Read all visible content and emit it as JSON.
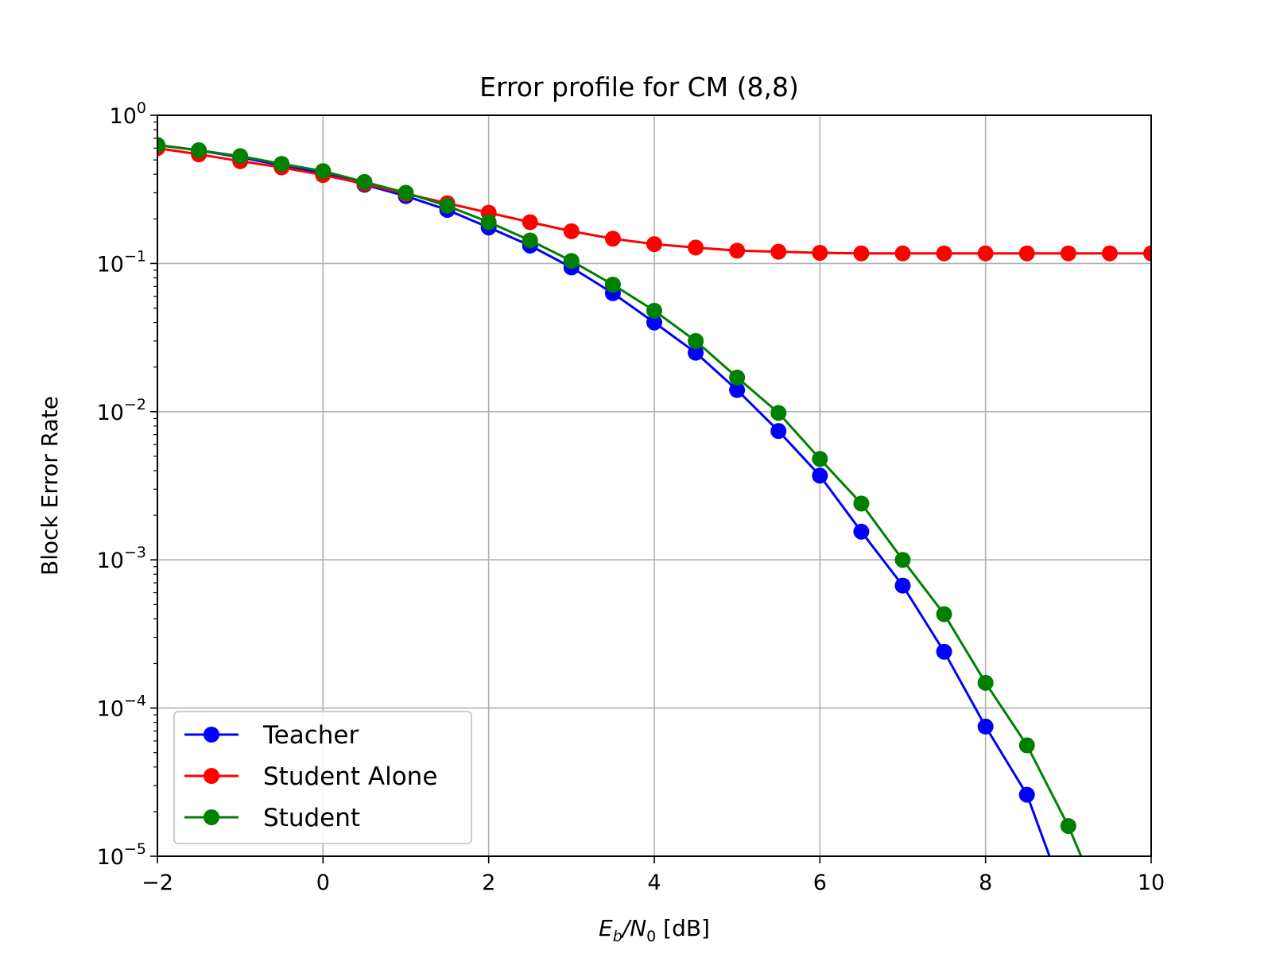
{
  "chart_data": {
    "type": "line",
    "title": "Error profile for CM (8,8)",
    "xlabel": {
      "base_e": "E",
      "sub_b": "b",
      "slash_n": "/N",
      "sub_0": "0",
      "unit": " [dB]"
    },
    "ylabel": "Block Error Rate",
    "x_scale": "linear",
    "y_scale": "log",
    "xlim": [
      -2,
      10
    ],
    "ylim": [
      1e-05,
      1
    ],
    "grid": true,
    "legend_position": "lower-left",
    "x_ticks": [
      "−2",
      "0",
      "2",
      "4",
      "6",
      "8",
      "10"
    ],
    "y_ticks": [
      {
        "base": "10",
        "exp": "0"
      },
      {
        "base": "10",
        "exp": "−1"
      },
      {
        "base": "10",
        "exp": "−2"
      },
      {
        "base": "10",
        "exp": "−3"
      },
      {
        "base": "10",
        "exp": "−4"
      },
      {
        "base": "10",
        "exp": "−5"
      }
    ],
    "series": [
      {
        "name": "Teacher",
        "color": "#0000ff",
        "x": [
          -2,
          -1.5,
          -1,
          -0.5,
          0,
          0.5,
          1,
          1.5,
          2,
          2.5,
          3,
          3.5,
          4,
          4.5,
          5,
          5.5,
          6,
          6.5,
          7,
          7.5,
          8,
          8.5,
          9
        ],
        "y": [
          0.63,
          0.58,
          0.52,
          0.46,
          0.41,
          0.34,
          0.285,
          0.23,
          0.175,
          0.132,
          0.094,
          0.063,
          0.04,
          0.025,
          0.014,
          0.0074,
          0.0037,
          0.00155,
          0.00067,
          0.00024,
          7.5e-05,
          2.6e-05,
          4.5e-06
        ]
      },
      {
        "name": "Student Alone",
        "color": "#ff0000",
        "x": [
          -2,
          -1.5,
          -1,
          -0.5,
          0,
          0.5,
          1,
          1.5,
          2,
          2.5,
          3,
          3.5,
          4,
          4.5,
          5,
          5.5,
          6,
          6.5,
          7,
          7.5,
          8,
          8.5,
          9,
          9.5,
          10
        ],
        "y": [
          0.6,
          0.545,
          0.49,
          0.445,
          0.395,
          0.345,
          0.295,
          0.255,
          0.22,
          0.19,
          0.165,
          0.147,
          0.135,
          0.128,
          0.122,
          0.12,
          0.118,
          0.117,
          0.117,
          0.117,
          0.117,
          0.117,
          0.117,
          0.117,
          0.117
        ]
      },
      {
        "name": "Student",
        "color": "#008000",
        "x": [
          -2,
          -1.5,
          -1,
          -0.5,
          0,
          0.5,
          1,
          1.5,
          2,
          2.5,
          3,
          3.5,
          4,
          4.5,
          5,
          5.5,
          6,
          6.5,
          7,
          7.5,
          8,
          8.5,
          9,
          9.5
        ],
        "y": [
          0.63,
          0.58,
          0.53,
          0.47,
          0.42,
          0.355,
          0.3,
          0.245,
          0.19,
          0.143,
          0.104,
          0.072,
          0.048,
          0.03,
          0.017,
          0.0098,
          0.0048,
          0.0024,
          0.001,
          0.00043,
          0.000148,
          5.6e-05,
          1.6e-05,
          3.5e-06
        ]
      }
    ]
  }
}
